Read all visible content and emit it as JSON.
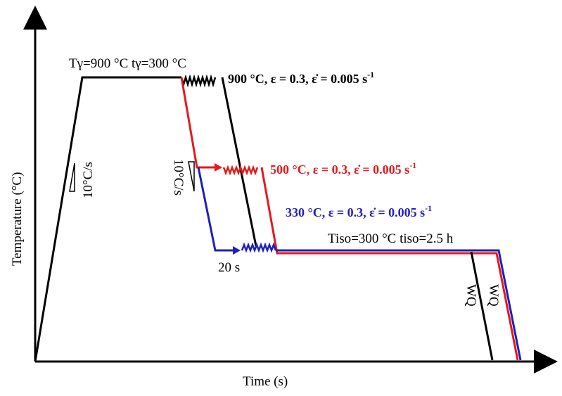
{
  "axes": {
    "x_label": "Time (s)",
    "y_label": "Temperature (°C)"
  },
  "labels": {
    "austenitize": "Tγ=900 °C tγ=300 °C",
    "heating_rate": "10°C/s",
    "cooling_rate": "10°C/s",
    "hold_time": "20 s",
    "isothermal": "Tiso=300 °C tiso=2.5 h",
    "quench_1": "WQ",
    "quench_2": "WQ"
  },
  "deformation": [
    {
      "temp": "900 °C",
      "strain": "ε = 0.3",
      "rate_symbol": "ε̇",
      "rate_value": " = 0.005 s",
      "rate_exp": "-1",
      "color": "#000000"
    },
    {
      "temp": "500 °C",
      "strain": "ε = 0.3",
      "rate_symbol": "ε̇",
      "rate_value": " = 0.005 s",
      "rate_exp": "-1",
      "color": "#e31a1c"
    },
    {
      "temp": "330 °C",
      "strain": "ε = 0.3",
      "rate_symbol": "ε̇",
      "rate_value": " = 0.005 s",
      "rate_exp": "-1",
      "color": "#1f1fbf"
    }
  ],
  "colors": {
    "axis": "#000000",
    "path_900": "#000000",
    "path_500": "#e31a1c",
    "path_330": "#1f1fbf"
  }
}
